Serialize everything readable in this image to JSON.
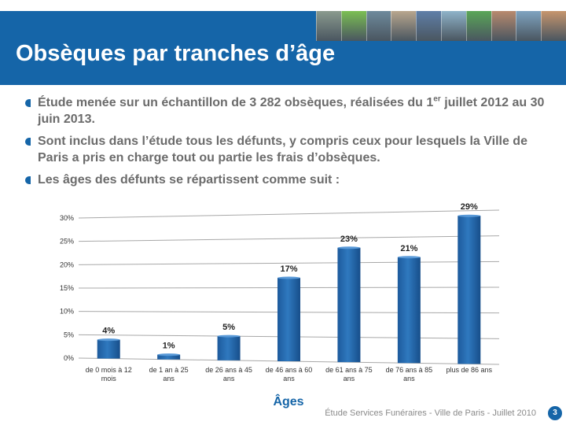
{
  "header": {
    "title": "Obsèques par tranches d’âge",
    "photo_colors": [
      "#8a9a8e",
      "#7bbf52",
      "#6e8a9c",
      "#b8a68e",
      "#5f7fa8",
      "#8fb3c9",
      "#5aa657",
      "#b88a6e",
      "#7fa3c0",
      "#c6956d"
    ]
  },
  "bullets": [
    {
      "pre": "Étude menée sur un échantillon de 3 282 obsèques, réalisées du 1",
      "sup": "er",
      "post": " juillet 2012 au 30 juin 2013."
    },
    {
      "pre": "Sont inclus dans l’étude tous les défunts, y compris ceux pour lesquels la Ville de Paris a pris en charge tout ou partie les frais d’obsèques.",
      "sup": "",
      "post": ""
    },
    {
      "pre": "Les âges des défunts se répartissent comme suit :",
      "sup": "",
      "post": ""
    }
  ],
  "chart_data": {
    "type": "bar",
    "categories": [
      "de 0 mois à 12 mois",
      "de 1 an à 25 ans",
      "de 26 ans à 45 ans",
      "de 46 ans à 60 ans",
      "de 61 ans à 75 ans",
      "de 76 ans à 85 ans",
      "plus de 86 ans"
    ],
    "values": [
      4,
      1,
      5,
      17,
      23,
      21,
      29
    ],
    "data_labels": [
      "4%",
      "1%",
      "5%",
      "17%",
      "23%",
      "21%",
      "29%"
    ],
    "y_ticks": [
      "0%",
      "5%",
      "10%",
      "15%",
      "20%",
      "25%",
      "30%"
    ],
    "ylim": [
      0,
      30
    ],
    "xlabel": "Âges",
    "grid": true,
    "bar_color": "#2f79bf"
  },
  "footer": {
    "text": "Étude Services Funéraires - Ville de Paris - Juillet 2010",
    "page": "3"
  }
}
